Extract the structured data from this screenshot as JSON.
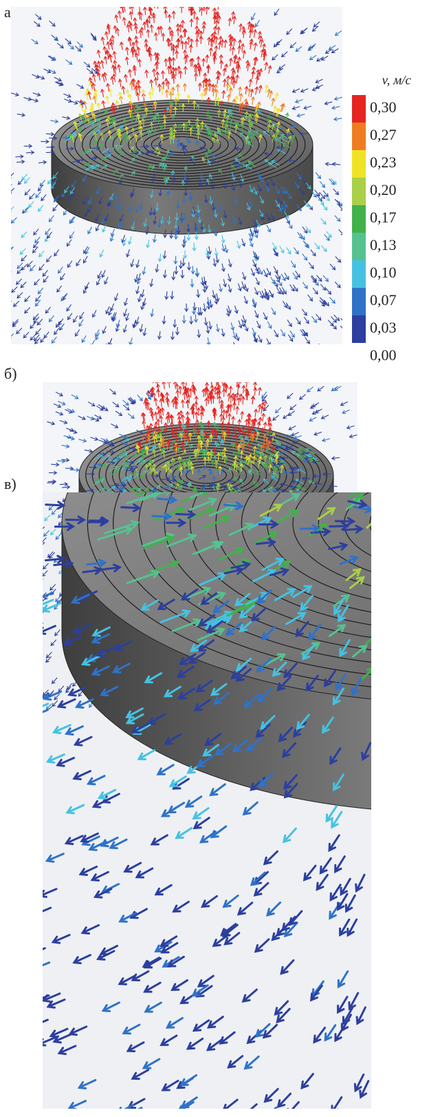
{
  "panels": [
    {
      "label": "а)"
    },
    {
      "label": "б)"
    },
    {
      "label": "в)"
    }
  ],
  "legend": {
    "title": "v, м/с",
    "items": [
      {
        "label": "0,30",
        "color": "#e52521"
      },
      {
        "label": "0,27",
        "color": "#f07c22"
      },
      {
        "label": "0,23",
        "color": "#efe325"
      },
      {
        "label": "0,20",
        "color": "#a9d046"
      },
      {
        "label": "0,17",
        "color": "#41b24a"
      },
      {
        "label": "0,13",
        "color": "#55c290"
      },
      {
        "label": "0,10",
        "color": "#45c2e2"
      },
      {
        "label": "0,07",
        "color": "#2f72c8"
      },
      {
        "label": "0,03",
        "color": "#2c3f9e"
      }
    ],
    "bottom_label": "0,00"
  }
}
